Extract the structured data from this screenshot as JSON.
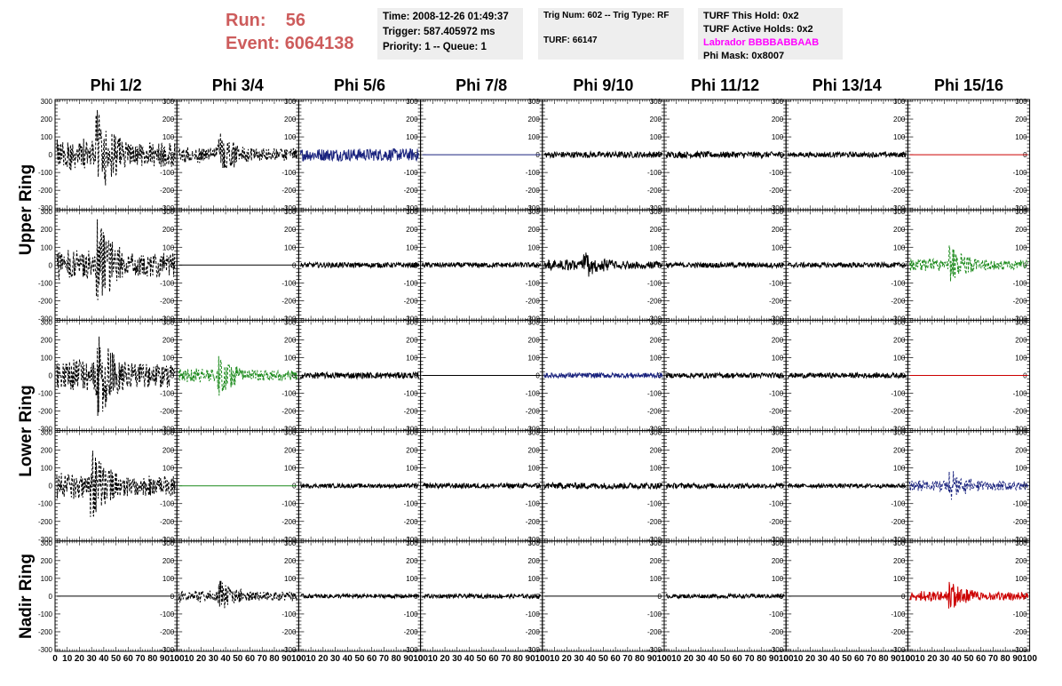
{
  "header": {
    "run_label": "Run:",
    "run_value": "56",
    "event_label": "Event:",
    "event_value": "6064138",
    "time": "Time: 2008-12-26 01:49:37",
    "trigger": "Trigger: 587.405972 ms",
    "priority": "Priority: 1 -- Queue: 1",
    "trig_info": "Trig Num: 602 -- Trig Type: RF",
    "turf": "TURF: 66147",
    "turf_this_hold": "TURF This Hold: 0x2",
    "turf_active_holds": "TURF Active Holds: 0x2",
    "labrador": "Labrador BBBBABBAAB",
    "phi_mask": "Phi Mask: 0x8007"
  },
  "columns": [
    "Phi 1/2",
    "Phi 3/4",
    "Phi 5/6",
    "Phi 7/8",
    "Phi 9/10",
    "Phi 11/12",
    "Phi 13/14",
    "Phi 15/16"
  ],
  "rings": [
    {
      "label": "Upper Ring",
      "rows": [
        0,
        1
      ]
    },
    {
      "label": "Lower Ring",
      "rows": [
        2,
        3
      ]
    },
    {
      "label": "Nadir Ring",
      "rows": [
        4
      ]
    }
  ],
  "colors": {
    "black": "#000000",
    "blue": "#1a237e",
    "green": "#1b8a1b",
    "red": "#cc0000",
    "run_text": "#cd5c5c",
    "labrador_text": "#ff00ff",
    "info_bg": "#eeeeee"
  },
  "chart_data": {
    "type": "line",
    "title": "",
    "x_ticks": [
      "0",
      "10",
      "20",
      "30",
      "40",
      "50",
      "60",
      "70",
      "80",
      "90",
      "100"
    ],
    "y_ticks": [
      "300",
      "200",
      "100",
      "0",
      "-100",
      "-200",
      "-300"
    ],
    "xlim": [
      0,
      100
    ],
    "ylim": [
      -300,
      300
    ],
    "grid": false,
    "panels": [
      [
        {
          "color": "black",
          "style": "dashed",
          "amplitude": 0.95,
          "burst_at": 0.33
        },
        {
          "color": "black",
          "style": "dashed",
          "amplitude": 0.5,
          "burst_at": 0.33
        },
        {
          "color": "blue",
          "style": "solid",
          "amplitude": 0.12,
          "burst_at": 0
        },
        {
          "color": "blue",
          "style": "solid",
          "amplitude": 0,
          "burst_at": 0
        },
        {
          "color": "black",
          "style": "solid",
          "amplitude": 0.06,
          "burst_at": 0
        },
        {
          "color": "black",
          "style": "solid",
          "amplitude": 0.06,
          "burst_at": 0
        },
        {
          "color": "black",
          "style": "solid",
          "amplitude": 0.05,
          "burst_at": 0
        },
        {
          "color": "red",
          "style": "solid",
          "amplitude": 0,
          "burst_at": 0
        }
      ],
      [
        {
          "color": "black",
          "style": "dashed",
          "amplitude": 0.95,
          "burst_at": 0.33
        },
        {
          "color": "black",
          "style": "solid",
          "amplitude": 0,
          "burst_at": 0
        },
        {
          "color": "black",
          "style": "solid",
          "amplitude": 0.05,
          "burst_at": 0
        },
        {
          "color": "black",
          "style": "solid",
          "amplitude": 0.05,
          "burst_at": 0
        },
        {
          "color": "black",
          "style": "solid",
          "amplitude": 0.3,
          "burst_at": 0.33
        },
        {
          "color": "black",
          "style": "solid",
          "amplitude": 0.05,
          "burst_at": 0
        },
        {
          "color": "black",
          "style": "solid",
          "amplitude": 0.05,
          "burst_at": 0
        },
        {
          "color": "green",
          "style": "dashed",
          "amplitude": 0.4,
          "burst_at": 0.33
        }
      ],
      [
        {
          "color": "black",
          "style": "dashed",
          "amplitude": 0.95,
          "burst_at": 0.33
        },
        {
          "color": "green",
          "style": "dashed",
          "amplitude": 0.42,
          "burst_at": 0.33
        },
        {
          "color": "black",
          "style": "solid",
          "amplitude": 0.06,
          "burst_at": 0
        },
        {
          "color": "black",
          "style": "solid",
          "amplitude": 0,
          "burst_at": 0
        },
        {
          "color": "blue",
          "style": "solid",
          "amplitude": 0.05,
          "burst_at": 0
        },
        {
          "color": "black",
          "style": "solid",
          "amplitude": 0.05,
          "burst_at": 0
        },
        {
          "color": "black",
          "style": "solid",
          "amplitude": 0.05,
          "burst_at": 0
        },
        {
          "color": "red",
          "style": "solid",
          "amplitude": 0
        }
      ],
      [
        {
          "color": "black",
          "style": "dashed",
          "amplitude": 0.8,
          "burst_at": 0.28
        },
        {
          "color": "green",
          "style": "solid",
          "amplitude": 0,
          "burst_at": 0
        },
        {
          "color": "black",
          "style": "solid",
          "amplitude": 0.04,
          "burst_at": 0
        },
        {
          "color": "black",
          "style": "solid",
          "amplitude": 0.05,
          "burst_at": 0
        },
        {
          "color": "black",
          "style": "solid",
          "amplitude": 0.06,
          "burst_at": 0
        },
        {
          "color": "black",
          "style": "solid",
          "amplitude": 0.05,
          "burst_at": 0
        },
        {
          "color": "black",
          "style": "solid",
          "amplitude": 0.04,
          "burst_at": 0
        },
        {
          "color": "blue",
          "style": "dashed",
          "amplitude": 0.35,
          "burst_at": 0.33
        }
      ],
      [
        {
          "color": "black",
          "style": "solid",
          "amplitude": 0,
          "burst_at": 0
        },
        {
          "color": "black",
          "style": "dashed",
          "amplitude": 0.35,
          "burst_at": 0.33
        },
        {
          "color": "black",
          "style": "solid",
          "amplitude": 0.04,
          "burst_at": 0
        },
        {
          "color": "black",
          "style": "solid",
          "amplitude": 0.04,
          "burst_at": 0
        },
        {
          "color": "black",
          "style": "solid",
          "amplitude": 0,
          "burst_at": 0
        },
        {
          "color": "black",
          "style": "solid",
          "amplitude": 0.04,
          "burst_at": 0
        },
        {
          "color": "black",
          "style": "solid",
          "amplitude": 0,
          "burst_at": 0
        },
        {
          "color": "red",
          "style": "solid",
          "amplitude": 0.3,
          "burst_at": 0.33
        }
      ]
    ]
  }
}
